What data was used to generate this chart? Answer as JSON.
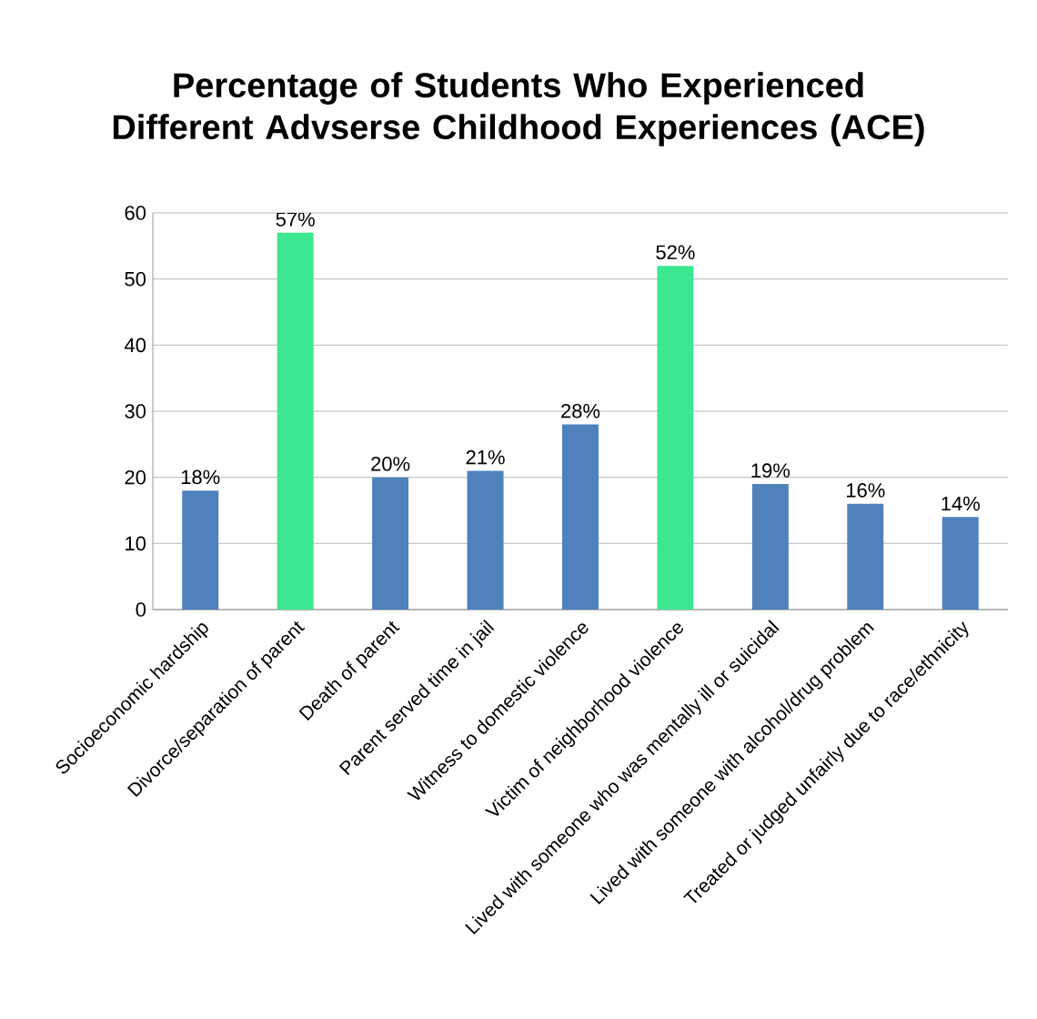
{
  "chart_data": {
    "type": "bar",
    "title": "Percentage of Students Who Experienced Different Advserse Childhood Experiences (ACE)",
    "categories": [
      "Socioeconomic hardship",
      "Divorce/separation of parent",
      "Death of parent",
      "Parent served time in jail",
      "Witness to domestic violence",
      "Victim of neighborhood violence",
      "Lived with someone who was mentally ill or suicidal",
      "Lived with someone with alcohol/drug problem",
      "Treated or judged unfairly due to race/ethnicity"
    ],
    "values": [
      18,
      57,
      20,
      21,
      28,
      52,
      19,
      16,
      14
    ],
    "value_labels": [
      "18%",
      "57%",
      "20%",
      "21%",
      "28%",
      "52%",
      "19%",
      "16%",
      "14%"
    ],
    "colors": [
      "#4f81bd",
      "#3de691",
      "#4f81bd",
      "#4f81bd",
      "#4f81bd",
      "#3de691",
      "#4f81bd",
      "#4f81bd",
      "#4f81bd"
    ],
    "ylim": [
      0,
      60
    ],
    "yticks": [
      0,
      10,
      20,
      30,
      40,
      50,
      60
    ],
    "grid": "y"
  }
}
